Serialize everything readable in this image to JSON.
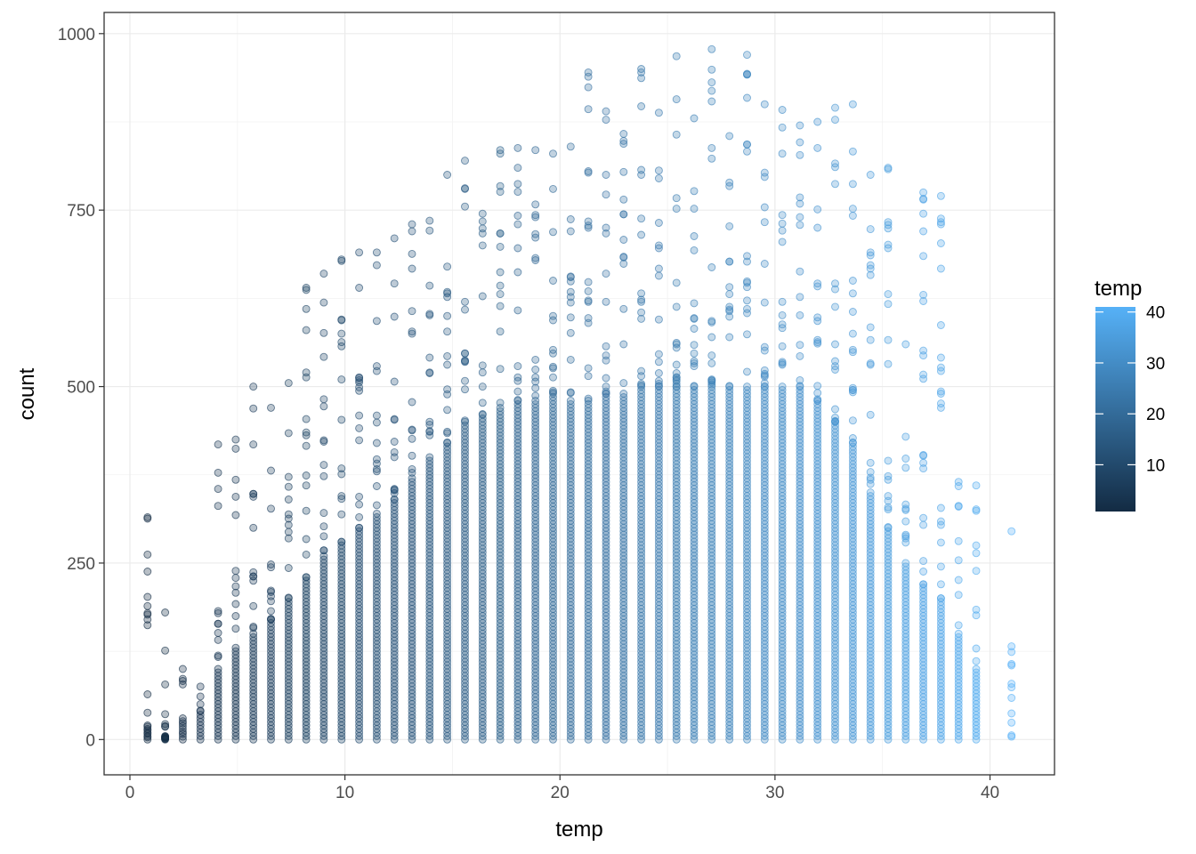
{
  "chart_data": {
    "type": "scatter",
    "title": "",
    "xlabel": "temp",
    "ylabel": "count",
    "xlim": [
      -1.2,
      43
    ],
    "ylim": [
      -50,
      1030
    ],
    "x_ticks": [
      0,
      10,
      20,
      30,
      40
    ],
    "x_tick_labels": [
      "0",
      "10",
      "20",
      "30",
      "40"
    ],
    "y_ticks": [
      0,
      250,
      500,
      750,
      1000
    ],
    "y_tick_labels": [
      "0",
      "250",
      "500",
      "750",
      "1000"
    ],
    "grid": true,
    "point_alpha": 0.3,
    "color_mapping": "temp",
    "legend": {
      "title": "temp",
      "position": "right",
      "type": "colorbar",
      "range": [
        0.82,
        41
      ],
      "ticks": [
        10,
        20,
        30,
        40
      ],
      "tick_labels": [
        "10",
        "20",
        "30",
        "40"
      ],
      "low_color": "#132B43",
      "high_color": "#56B1F7"
    },
    "temp_levels": [
      0.82,
      1.64,
      2.46,
      3.28,
      4.1,
      4.92,
      5.74,
      6.56,
      7.38,
      8.2,
      9.02,
      9.84,
      10.66,
      11.48,
      12.3,
      13.12,
      13.94,
      14.76,
      15.58,
      16.4,
      17.22,
      18.04,
      18.86,
      19.68,
      20.5,
      21.32,
      22.14,
      22.96,
      23.78,
      24.6,
      25.42,
      26.24,
      27.06,
      27.88,
      28.7,
      29.52,
      30.34,
      31.16,
      31.98,
      32.8,
      33.62,
      34.44,
      35.26,
      36.08,
      36.9,
      37.72,
      38.54,
      39.36,
      40.18,
      41.0
    ],
    "dense_band_top": [
      20,
      5,
      30,
      40,
      100,
      130,
      150,
      170,
      200,
      230,
      260,
      280,
      300,
      320,
      340,
      370,
      400,
      420,
      450,
      460,
      470,
      480,
      480,
      490,
      480,
      480,
      490,
      490,
      500,
      500,
      500,
      500,
      500,
      500,
      500,
      500,
      500,
      500,
      480,
      450,
      420,
      350,
      300,
      250,
      220,
      200,
      150,
      100,
      0,
      0
    ],
    "max_count": [
      315,
      180,
      100,
      75,
      418,
      425,
      500,
      470,
      505,
      640,
      660,
      680,
      690,
      690,
      710,
      730,
      735,
      800,
      820,
      745,
      835,
      838,
      835,
      830,
      840,
      945,
      890,
      858,
      950,
      888,
      968,
      880,
      978,
      855,
      970,
      900,
      892,
      870,
      875,
      895,
      900,
      800,
      810,
      560,
      775,
      770,
      365,
      360,
      0,
      295
    ],
    "max_count_note": "",
    "highest_point": {
      "x": 27.06,
      "y": 977
    },
    "lowest_temp_point": {
      "x": 0.82,
      "y": 315
    },
    "outlier_high_temp": {
      "x": 41.0,
      "y": 295
    }
  }
}
